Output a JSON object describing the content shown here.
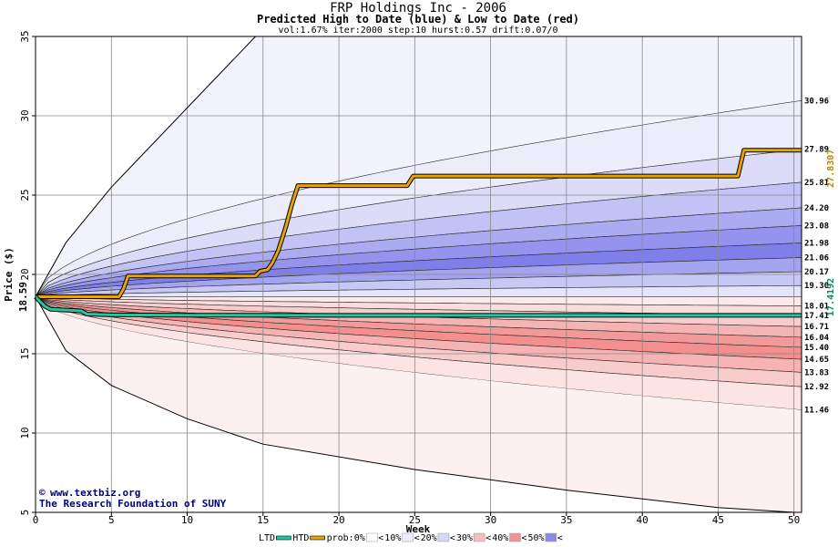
{
  "chart_data": {
    "type": "area",
    "title": "FRP Holdings Inc - 2006",
    "subtitle": "Predicted High to Date (blue) &  Low to Date (red)",
    "params": "vol:1.67% iter:2000 step:10 hurst:0.57 drift:0.07/0",
    "xlabel": "Week",
    "ylabel": "Price ($)",
    "xlim": [
      0,
      50.5
    ],
    "ylim": [
      5,
      35
    ],
    "x_ticks": [
      0,
      5,
      10,
      15,
      20,
      25,
      30,
      35,
      40,
      45,
      50
    ],
    "y_ticks": [
      5,
      10,
      15,
      20,
      25,
      30,
      35
    ],
    "start_price": 18.59,
    "start_label": "18.59",
    "high_percentiles": [
      {
        "end": 30.96,
        "label": "30.96",
        "fill": "#ececfb"
      },
      {
        "end": 27.89,
        "label": "27.89",
        "fill": "#dcdcf8"
      },
      {
        "end": 25.81,
        "label": "25.81",
        "fill": "#c2c2f4"
      },
      {
        "end": 24.2,
        "label": "24.20",
        "fill": "#ababf1"
      },
      {
        "end": 23.08,
        "label": "23.08",
        "fill": "#9494ee"
      },
      {
        "end": 21.98,
        "label": "21.98",
        "fill": "#7f7fea"
      },
      {
        "end": 21.06,
        "label": "21.06",
        "fill": "#a3a3f0"
      },
      {
        "end": 20.17,
        "label": "20.17",
        "fill": "#c8c8f5"
      },
      {
        "end": 19.3,
        "label": "19.30",
        "fill": "#e4e4fa"
      }
    ],
    "low_percentiles": [
      {
        "end": 18.01,
        "label": "18.01",
        "fill": "#fbeaea"
      },
      {
        "end": 17.41,
        "label": "17.41",
        "fill": "#f9dcdc"
      },
      {
        "end": 16.71,
        "label": "16.71",
        "fill": "#f7cccc"
      },
      {
        "end": 16.04,
        "label": "16.04",
        "fill": "#f5b4b4"
      },
      {
        "end": 15.4,
        "label": "15.40",
        "fill": "#f29a9a"
      },
      {
        "end": 14.65,
        "label": "14.65",
        "fill": "#f38f8f"
      },
      {
        "end": 13.83,
        "label": "13.83",
        "fill": "#f6b3b3"
      },
      {
        "end": 12.92,
        "label": "12.92",
        "fill": "#f9cccc"
      },
      {
        "end": 11.46,
        "label": "11.46",
        "fill": "#fce4e4"
      }
    ],
    "max_curve": {
      "x": [
        0,
        2,
        5,
        8,
        11,
        14.5
      ],
      "y": [
        18.59,
        22,
        25.5,
        28.5,
        31.5,
        35
      ]
    },
    "min_curve": {
      "x": [
        0,
        2,
        5,
        10,
        15,
        25,
        35,
        45,
        50
      ],
      "y": [
        18.59,
        15.2,
        13,
        10.9,
        9.3,
        7.7,
        6.4,
        5.3,
        5.0
      ]
    },
    "series": [
      {
        "name": "HTD",
        "color": "#e8a400",
        "x": [
          0,
          5.5,
          5.8,
          6.1,
          14.5,
          14.8,
          15.3,
          15.6,
          16.0,
          16.5,
          16.9,
          17.3,
          24.5,
          24.9,
          46.3,
          46.7,
          50.5
        ],
        "y": [
          18.59,
          18.59,
          19.1,
          19.9,
          19.9,
          20.2,
          20.3,
          20.7,
          21.5,
          23.0,
          24.4,
          25.6,
          25.6,
          26.2,
          26.2,
          27.83,
          27.83
        ]
      },
      {
        "name": "LTD",
        "color": "#20c7a0",
        "x": [
          0,
          0.6,
          1.0,
          2.0,
          3.0,
          3.4,
          5.0,
          10.0,
          20.0,
          30.0,
          40.0,
          50.5
        ],
        "y": [
          18.59,
          18.0,
          17.8,
          17.75,
          17.7,
          17.5,
          17.45,
          17.43,
          17.42,
          17.42,
          17.42,
          17.42
        ]
      }
    ],
    "htd_end_label": "27.8307",
    "ltd_end_label": "17.4192",
    "credit_url": "www.textbiz.org",
    "credit_org": "The Research Foundation of SUNY",
    "credit_symbol": "©",
    "legend": {
      "items": [
        {
          "label": "LTD",
          "swatch": "#20c7a0",
          "kind": "line"
        },
        {
          "label": "HTD",
          "swatch": "#e8a400",
          "kind": "line"
        },
        {
          "label": "prob:0%",
          "swatch": "#ffffff",
          "kind": "box"
        },
        {
          "label": "10%",
          "swatch": "#ececfb",
          "kind": "box"
        },
        {
          "label": "20%",
          "swatch": "#d6d6f6",
          "kind": "box"
        },
        {
          "label": "30%",
          "swatch": "#f6bcbc",
          "kind": "box"
        },
        {
          "label": "40%",
          "swatch": "#f19494",
          "kind": "box"
        },
        {
          "label": "50%",
          "swatch": "#8a8aec",
          "kind": "box"
        }
      ]
    }
  }
}
